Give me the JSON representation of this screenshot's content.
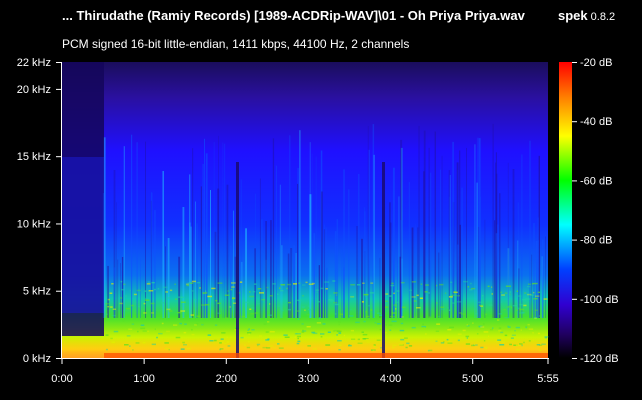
{
  "header": {
    "file_title": "... Thirudathe (Ramiy Records) [1989-ACDRip-WAV]\\01 - Oh Priya Priya.wav",
    "app_name": "spek",
    "app_version": "0.8.2",
    "audio_info": "PCM signed 16-bit little-endian, 1411 kbps, 44100 Hz, 2 channels"
  },
  "frequency_axis": {
    "unit": "kHz",
    "max_khz": 22,
    "ticks": [
      {
        "label": "22 kHz",
        "value": 22
      },
      {
        "label": "20 kHz",
        "value": 20
      },
      {
        "label": "15 kHz",
        "value": 15
      },
      {
        "label": "10 kHz",
        "value": 10
      },
      {
        "label": "5 kHz",
        "value": 5
      },
      {
        "label": "0 kHz",
        "value": 0
      }
    ]
  },
  "time_axis": {
    "duration_seconds": 355,
    "ticks": [
      {
        "label": "0:00",
        "seconds": 0
      },
      {
        "label": "1:00",
        "seconds": 60
      },
      {
        "label": "2:00",
        "seconds": 120
      },
      {
        "label": "3:00",
        "seconds": 180
      },
      {
        "label": "4:00",
        "seconds": 240
      },
      {
        "label": "5:00",
        "seconds": 300
      },
      {
        "label": "5:55",
        "seconds": 355
      }
    ]
  },
  "db_scale": {
    "max_db": -20,
    "min_db": -120,
    "ticks": [
      {
        "label": "-20 dB",
        "value": -20
      },
      {
        "label": "-40 dB",
        "value": -40
      },
      {
        "label": "-60 dB",
        "value": -60
      },
      {
        "label": "-80 dB",
        "value": -80
      },
      {
        "label": "-100 dB",
        "value": -100
      },
      {
        "label": "-120 dB",
        "value": -120
      }
    ],
    "colors": [
      "#ff0000",
      "#ff8000",
      "#ffff00",
      "#00ff00",
      "#00ffff",
      "#0040ff",
      "#3000d0",
      "#200060",
      "#000000"
    ]
  },
  "colors": {
    "background": "#000000",
    "text": "#ffffff",
    "axis": "#ffffff"
  }
}
